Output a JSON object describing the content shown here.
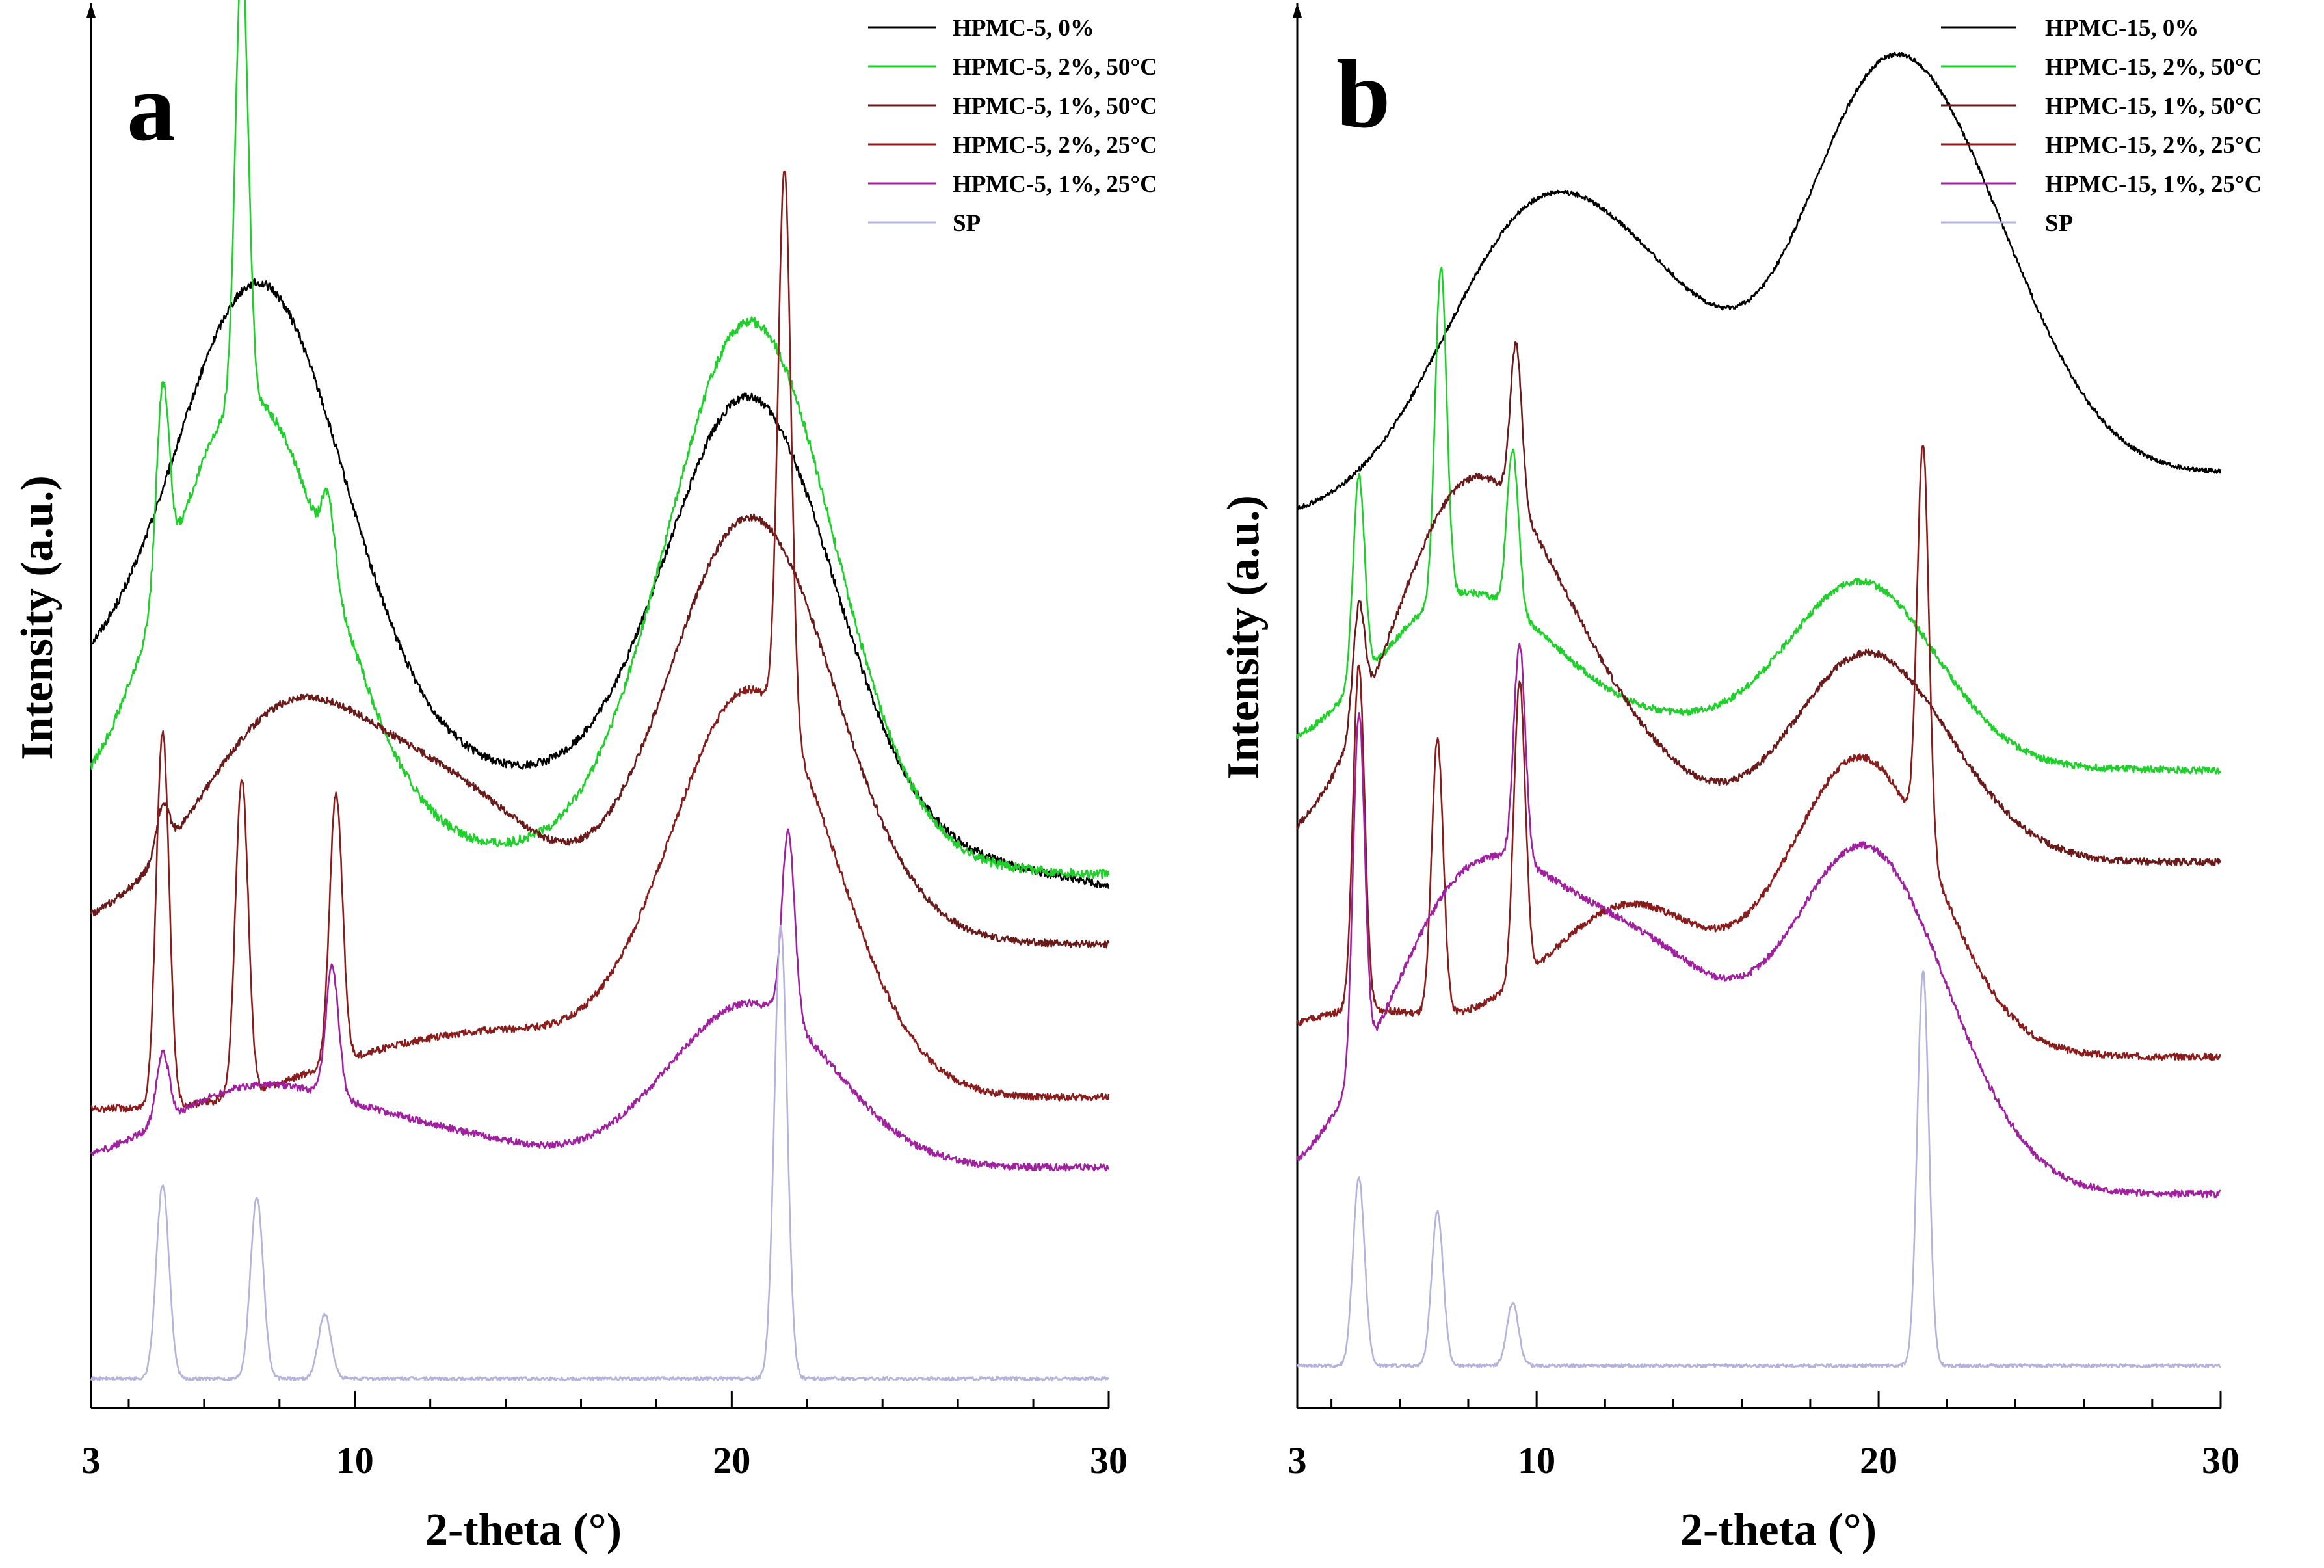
{
  "chart_data": [
    {
      "type": "line",
      "panel_label": "a",
      "xlabel": "2-theta (°)",
      "ylabel": "Intensity (a.u.)",
      "xlim": [
        3,
        30
      ],
      "xticks": [
        3,
        10,
        20,
        30
      ],
      "y_units": "arbitrary, stacked with vertical offsets",
      "series": [
        {
          "name": "HPMC-5, 0%",
          "color": "#000000",
          "baseline": 0.62,
          "noise": 0.0035,
          "components": [
            [
              1,
              0.58,
              0
            ],
            [
              2,
              0.42,
              0
            ],
            [
              2,
              0.35,
              10
            ],
            [
              2,
              0.34,
              13
            ],
            [
              2,
              0.35,
              15
            ],
            [
              2,
              0.3,
              20
            ],
            [
              3,
              1.0,
              7.5
            ],
            [
              3,
              0.24,
              9.5
            ],
            [
              3,
              0.98,
              20.5
            ]
          ],
          "keypoints": [
            [
              3,
              0.62
            ],
            [
              7.5,
              1.0
            ],
            [
              8.5,
              0.88
            ],
            [
              12,
              0.84
            ],
            [
              15,
              0.73
            ],
            [
              20.5,
              0.97
            ],
            [
              24,
              0.78
            ],
            [
              30,
              0.71
            ]
          ]
        },
        {
          "name": "HPMC-5, 2%, 50°C",
          "color": "#1fd02a",
          "baseline": 0.47,
          "noise": 0.004,
          "components": [
            [
              1,
              0.46,
              0
            ],
            [
              2,
              0.43,
              0
            ],
            [
              3,
              0.34,
              10
            ],
            [
              2,
              0.33,
              13
            ],
            [
              2,
              0.38,
              15
            ],
            [
              2,
              0.34,
              20
            ],
            [
              3,
              0.85,
              7.2
            ],
            [
              3,
              0.93,
              20.5
            ],
            [
              4,
              0.64,
              4.9
            ],
            [
              4,
              0.85,
              7.0
            ],
            [
              4,
              0.53,
              9.3
            ]
          ],
          "keypoints": [
            [
              3,
              0.49
            ],
            [
              4.9,
              0.64
            ],
            [
              7.2,
              0.85
            ],
            [
              9.3,
              0.53
            ],
            [
              15,
              0.46
            ],
            [
              20.5,
              0.93
            ],
            [
              30,
              0.47
            ]
          ]
        },
        {
          "name": "HPMC-5, 1%, 50°C",
          "color": "#6b1a1a",
          "baseline": 0.38,
          "noise": 0.003,
          "components": [
            [
              1,
              0.38,
              0
            ],
            [
              2,
              0.37,
              0
            ],
            [
              3,
              0.5,
              7.5
            ],
            [
              3,
              0.47,
              9.5
            ],
            [
              3,
              0.48,
              13
            ],
            [
              3,
              0.74,
              20.5
            ],
            [
              4,
              0.42,
              4.9
            ]
          ],
          "keypoints": [
            [
              3,
              0.38
            ],
            [
              4.9,
              0.42
            ],
            [
              7.5,
              0.5
            ],
            [
              13,
              0.48
            ],
            [
              20.5,
              0.74
            ],
            [
              30,
              0.53
            ]
          ]
        },
        {
          "name": "HPMC-5, 2%, 25°C",
          "color": "#8b1c1c",
          "baseline": 0.24,
          "noise": 0.003,
          "components": [
            [
              1,
              0.23,
              0
            ],
            [
              2,
              0.24,
              0
            ],
            [
              3,
              0.24,
              4.9
            ],
            [
              2,
              0.36,
              10
            ],
            [
              2,
              0.37,
              13
            ],
            [
              2,
              0.36,
              15
            ],
            [
              3,
              0.59,
              20.5
            ],
            [
              4,
              0.71,
              21.4
            ],
            [
              4,
              0.56,
              4.9
            ],
            [
              4,
              0.51,
              7.0
            ],
            [
              4,
              0.47,
              9.5
            ]
          ],
          "keypoints": [
            [
              3,
              0.23
            ],
            [
              4.9,
              0.56
            ],
            [
              7.0,
              0.51
            ],
            [
              9.5,
              0.47
            ],
            [
              15,
              0.36
            ],
            [
              21.4,
              0.71
            ],
            [
              30,
              0.28
            ]
          ]
        },
        {
          "name": "HPMC-5, 1%, 25°C",
          "color": "#a020a0",
          "baseline": 0.16,
          "noise": 0.003,
          "components": [
            [
              1,
              0.18,
              0
            ],
            [
              2,
              0.18,
              0
            ],
            [
              3,
              0.22,
              7.0
            ],
            [
              2,
              0.26,
              10
            ],
            [
              2,
              0.24,
              13
            ],
            [
              3,
              0.3,
              20.5
            ],
            [
              4,
              0.32,
              21.5
            ],
            [
              4,
              0.22,
              4.9
            ],
            [
              4,
              0.27,
              9.4
            ]
          ],
          "keypoints": [
            [
              3,
              0.18
            ],
            [
              4.9,
              0.22
            ],
            [
              7.0,
              0.26
            ],
            [
              9.4,
              0.27
            ],
            [
              20.5,
              0.3
            ],
            [
              30,
              0.24
            ]
          ]
        },
        {
          "name": "SP",
          "color": "#b3b3dc",
          "baseline": -0.005,
          "noise": 0.0015,
          "components": [
            [
              1,
              0.0,
              0
            ],
            [
              2,
              0.0,
              0
            ],
            [
              4,
              0.16,
              4.9
            ],
            [
              4,
              0.15,
              7.4
            ],
            [
              4,
              0.05,
              9.2
            ],
            [
              4,
              0.38,
              21.3
            ]
          ],
          "keypoints": [
            [
              3,
              0.0
            ],
            [
              4.9,
              0.16
            ],
            [
              7.4,
              0.15
            ],
            [
              9.2,
              0.05
            ],
            [
              21.3,
              0.38
            ],
            [
              30,
              0.0
            ]
          ]
        }
      ]
    },
    {
      "type": "line",
      "panel_label": "b",
      "xlabel": "2-theta (°)",
      "ylabel": "Intensity (a.u.)",
      "xlim": [
        3,
        30
      ],
      "xticks": [
        3,
        10,
        20,
        30
      ],
      "y_units": "arbitrary, stacked with vertical offsets",
      "series": [
        {
          "name": "HPMC-15, 0%",
          "color": "#000000",
          "baseline": 0.74,
          "noise": 0.002,
          "components": [
            [
              1,
              0.74,
              0
            ],
            [
              2,
              0.78,
              0
            ],
            [
              3,
              0.77,
              7
            ],
            [
              3,
              0.86,
              9
            ],
            [
              3,
              0.88,
              11
            ],
            [
              3,
              0.86,
              14
            ],
            [
              3,
              1.0,
              19.5
            ],
            [
              3,
              0.9,
              22
            ],
            [
              3,
              0.8,
              24
            ]
          ],
          "keypoints": [
            [
              3,
              0.74
            ],
            [
              7,
              0.77
            ],
            [
              10,
              0.87
            ],
            [
              14,
              0.86
            ],
            [
              19.5,
              1.0
            ],
            [
              24,
              0.8
            ],
            [
              30,
              0.78
            ]
          ]
        },
        {
          "name": "HPMC-15, 2%, 50°C",
          "color": "#1fd02a",
          "baseline": 0.5,
          "noise": 0.003,
          "components": [
            [
              1,
              0.53,
              0
            ],
            [
              2,
              0.52,
              0
            ],
            [
              3,
              0.6,
              7.0
            ],
            [
              3,
              0.57,
              9.5
            ],
            [
              3,
              0.52,
              13
            ],
            [
              2,
              0.55,
              15
            ],
            [
              3,
              0.66,
              19.5
            ],
            [
              4,
              0.68,
              4.8
            ],
            [
              4,
              0.79,
              7.2
            ],
            [
              4,
              0.64,
              9.3
            ]
          ],
          "keypoints": [
            [
              3,
              0.53
            ],
            [
              4.8,
              0.68
            ],
            [
              7.2,
              0.79
            ],
            [
              9.3,
              0.64
            ],
            [
              14,
              0.52
            ],
            [
              19.5,
              0.66
            ],
            [
              30,
              0.53
            ]
          ]
        },
        {
          "name": "HPMC-15, 1%, 50°C",
          "color": "#6b1a1a",
          "baseline": 0.38,
          "noise": 0.003,
          "components": [
            [
              1,
              0.44,
              0
            ],
            [
              2,
              0.44,
              0
            ],
            [
              3,
              0.63,
              7.5
            ],
            [
              3,
              0.51,
              10
            ],
            [
              3,
              0.44,
              13
            ],
            [
              3,
              0.55,
              19.5
            ],
            [
              2,
              0.48,
              22
            ],
            [
              4,
              0.48,
              4.8
            ],
            [
              4,
              0.52,
              9.4
            ]
          ],
          "keypoints": [
            [
              3,
              0.44
            ],
            [
              4.8,
              0.48
            ],
            [
              7.5,
              0.63
            ],
            [
              9.4,
              0.52
            ],
            [
              14,
              0.44
            ],
            [
              19.5,
              0.55
            ],
            [
              30,
              0.44
            ]
          ]
        },
        {
          "name": "HPMC-15, 2%, 25°C",
          "color": "#8b1c1c",
          "baseline": 0.23,
          "noise": 0.003,
          "components": [
            [
              1,
              0.27,
              0
            ],
            [
              2,
              0.27,
              0
            ],
            [
              3,
              0.27,
              4.8
            ],
            [
              2,
              0.35,
              10
            ],
            [
              3,
              0.35,
              13
            ],
            [
              3,
              0.49,
              19.5
            ],
            [
              4,
              0.58,
              21.3
            ],
            [
              4,
              0.53,
              4.8
            ],
            [
              4,
              0.47,
              7.1
            ],
            [
              4,
              0.49,
              9.5
            ]
          ],
          "keypoints": [
            [
              3,
              0.27
            ],
            [
              4.8,
              0.53
            ],
            [
              7.1,
              0.47
            ],
            [
              9.5,
              0.49
            ],
            [
              14,
              0.35
            ],
            [
              21.3,
              0.58
            ],
            [
              30,
              0.27
            ]
          ]
        },
        {
          "name": "HPMC-15, 1%, 25°C",
          "color": "#a020a0",
          "baseline": 0.16,
          "noise": 0.003,
          "components": [
            [
              1,
              0.15,
              0
            ],
            [
              2,
              0.15,
              0
            ],
            [
              3,
              0.3,
              7.0
            ],
            [
              3,
              0.31,
              9
            ],
            [
              3,
              0.28,
              12
            ],
            [
              3,
              0.27,
              14.5
            ],
            [
              3,
              0.44,
              19.5
            ],
            [
              2,
              0.3,
              22
            ],
            [
              4,
              0.47,
              4.8
            ],
            [
              4,
              0.35,
              9.5
            ]
          ],
          "keypoints": [
            [
              3,
              0.15
            ],
            [
              4.8,
              0.47
            ],
            [
              7.0,
              0.3
            ],
            [
              9.5,
              0.35
            ],
            [
              14.5,
              0.27
            ],
            [
              19.5,
              0.44
            ],
            [
              30,
              0.16
            ]
          ]
        },
        {
          "name": "SP",
          "color": "#b3b3dc",
          "baseline": -0.005,
          "noise": 0.0015,
          "components": [
            [
              1,
              0.0,
              0
            ],
            [
              2,
              0.0,
              0
            ],
            [
              4,
              0.16,
              4.8
            ],
            [
              4,
              0.13,
              7.1
            ],
            [
              4,
              0.05,
              9.3
            ],
            [
              4,
              0.34,
              21.3
            ]
          ],
          "keypoints": [
            [
              3,
              0.0
            ],
            [
              4.8,
              0.16
            ],
            [
              7.1,
              0.13
            ],
            [
              9.3,
              0.05
            ],
            [
              21.3,
              0.34
            ],
            [
              30,
              0.0
            ]
          ]
        }
      ]
    }
  ]
}
